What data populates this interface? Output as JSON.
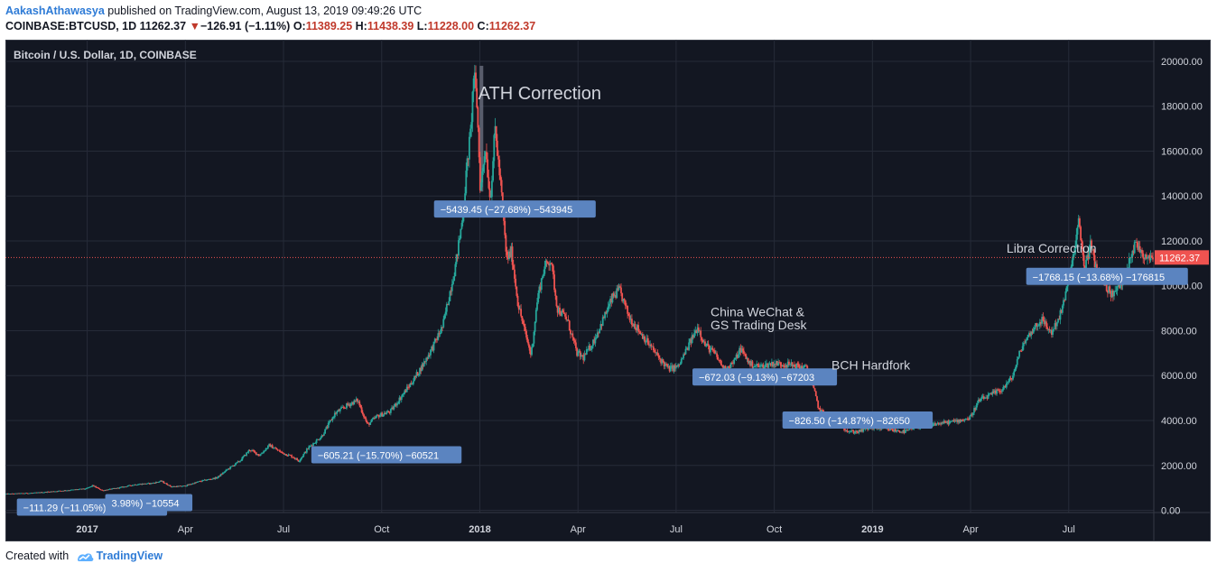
{
  "header": {
    "author": "AakashAthawasya",
    "published": " published on TradingView.com, August 13, 2019 09:49:26 UTC",
    "symbol": "COINBASE:BTCUSD, 1D",
    "last": "11262.37",
    "arrow": "▼",
    "change": "−126.91 (−1.11%)",
    "o_label": "O:",
    "o_value": "11389.25",
    "h_label": "H:",
    "h_value": "11438.39",
    "l_label": "L:",
    "l_value": "11228.00",
    "c_label": "C:",
    "c_value": "11262.37"
  },
  "footer": {
    "created": "Created with",
    "brand": "TradingView"
  },
  "chart_data": {
    "type": "line",
    "subtype": "candlestick",
    "title": "Bitcoin / U.S. Dollar, 1D, COINBASE",
    "ylim": [
      -100,
      20400
    ],
    "y_ticks": [
      "20000.00",
      "18000.00",
      "16000.00",
      "14000.00",
      "12000.00",
      "10000.00",
      "8000.00",
      "6000.00",
      "4000.00",
      "2000.00",
      "0.00"
    ],
    "y_tick_values": [
      20000,
      18000,
      16000,
      14000,
      12000,
      10000,
      8000,
      6000,
      4000,
      2000,
      0
    ],
    "x_ticks": [
      {
        "label": "2017",
        "year": true,
        "month": 0
      },
      {
        "label": "Apr",
        "year": false,
        "month": 3
      },
      {
        "label": "Jul",
        "year": false,
        "month": 6
      },
      {
        "label": "Oct",
        "year": false,
        "month": 9
      },
      {
        "label": "2018",
        "year": true,
        "month": 12
      },
      {
        "label": "Apr",
        "year": false,
        "month": 15
      },
      {
        "label": "Jul",
        "year": false,
        "month": 18
      },
      {
        "label": "Oct",
        "year": false,
        "month": 21
      },
      {
        "label": "2019",
        "year": true,
        "month": 24
      },
      {
        "label": "Apr",
        "year": false,
        "month": 27
      },
      {
        "label": "Jul",
        "year": false,
        "month": 30
      }
    ],
    "x_range_months": [
      -2.5,
      32.6
    ],
    "last_price": 11262.37,
    "last_price_label": "11262.37",
    "price_path": [
      [
        -2.5,
        720
      ],
      [
        -1.5,
        780
      ],
      [
        -0.5,
        900
      ],
      [
        0,
        960
      ],
      [
        0.2,
        1100
      ],
      [
        0.5,
        880
      ],
      [
        1,
        1000
      ],
      [
        1.5,
        1150
      ],
      [
        2,
        1200
      ],
      [
        2.3,
        1300
      ],
      [
        2.6,
        1050
      ],
      [
        3,
        1080
      ],
      [
        3.5,
        1300
      ],
      [
        4,
        1450
      ],
      [
        4.3,
        1800
      ],
      [
        4.7,
        2200
      ],
      [
        5.0,
        2700
      ],
      [
        5.3,
        2450
      ],
      [
        5.6,
        2900
      ],
      [
        6,
        2550
      ],
      [
        6.3,
        2400
      ],
      [
        6.5,
        2200
      ],
      [
        6.8,
        2800
      ],
      [
        7.2,
        3300
      ],
      [
        7.6,
        4300
      ],
      [
        8,
        4700
      ],
      [
        8.3,
        4900
      ],
      [
        8.6,
        3800
      ],
      [
        8.9,
        4200
      ],
      [
        9.3,
        4400
      ],
      [
        9.6,
        5000
      ],
      [
        10,
        5800
      ],
      [
        10.3,
        6500
      ],
      [
        10.6,
        7300
      ],
      [
        10.9,
        8200
      ],
      [
        11.1,
        9600
      ],
      [
        11.3,
        11000
      ],
      [
        11.5,
        13000
      ],
      [
        11.65,
        15500
      ],
      [
        11.75,
        16800
      ],
      [
        11.85,
        19500
      ],
      [
        11.95,
        18000
      ],
      [
        12.05,
        14200
      ],
      [
        12.2,
        16300
      ],
      [
        12.35,
        13800
      ],
      [
        12.5,
        17000
      ],
      [
        12.7,
        14000
      ],
      [
        12.85,
        11200
      ],
      [
        13.0,
        11500
      ],
      [
        13.2,
        9200
      ],
      [
        13.4,
        8000
      ],
      [
        13.6,
        6900
      ],
      [
        13.8,
        9500
      ],
      [
        14.0,
        10800
      ],
      [
        14.2,
        11200
      ],
      [
        14.4,
        9000
      ],
      [
        14.7,
        8500
      ],
      [
        15.0,
        7000
      ],
      [
        15.2,
        6800
      ],
      [
        15.5,
        7500
      ],
      [
        15.8,
        8500
      ],
      [
        16.1,
        9500
      ],
      [
        16.3,
        9800
      ],
      [
        16.6,
        8600
      ],
      [
        16.9,
        8000
      ],
      [
        17.2,
        7400
      ],
      [
        17.5,
        6800
      ],
      [
        17.8,
        6300
      ],
      [
        18.1,
        6400
      ],
      [
        18.4,
        7300
      ],
      [
        18.7,
        8200
      ],
      [
        18.9,
        7400
      ],
      [
        19.2,
        7000
      ],
      [
        19.5,
        6300
      ],
      [
        19.8,
        6600
      ],
      [
        20.0,
        7200
      ],
      [
        20.3,
        6500
      ],
      [
        20.6,
        6400
      ],
      [
        21.0,
        6550
      ],
      [
        21.4,
        6500
      ],
      [
        21.8,
        6400
      ],
      [
        22.0,
        6350
      ],
      [
        22.2,
        5600
      ],
      [
        22.4,
        4500
      ],
      [
        22.7,
        4100
      ],
      [
        23.0,
        3900
      ],
      [
        23.3,
        3500
      ],
      [
        23.6,
        3500
      ],
      [
        24.0,
        3700
      ],
      [
        24.5,
        3600
      ],
      [
        25.0,
        3500
      ],
      [
        25.5,
        3750
      ],
      [
        26.0,
        3850
      ],
      [
        26.5,
        3950
      ],
      [
        27.0,
        4100
      ],
      [
        27.3,
        4900
      ],
      [
        27.6,
        5100
      ],
      [
        28.0,
        5400
      ],
      [
        28.3,
        5900
      ],
      [
        28.6,
        7300
      ],
      [
        28.9,
        8000
      ],
      [
        29.2,
        8500
      ],
      [
        29.5,
        7900
      ],
      [
        29.8,
        8800
      ],
      [
        30.0,
        10000
      ],
      [
        30.2,
        11500
      ],
      [
        30.35,
        12900
      ],
      [
        30.5,
        10800
      ],
      [
        30.7,
        11800
      ],
      [
        30.9,
        10600
      ],
      [
        31.1,
        10300
      ],
      [
        31.3,
        9600
      ],
      [
        31.5,
        9800
      ],
      [
        31.7,
        10200
      ],
      [
        31.9,
        11300
      ],
      [
        32.1,
        11900
      ],
      [
        32.3,
        11400
      ],
      [
        32.6,
        11262
      ]
    ],
    "annotations": [
      {
        "text": "ATH Correction",
        "x": 11.95,
        "y": 18300,
        "size": "large"
      },
      {
        "text": "China WeChat &",
        "x": 19.05,
        "y": 8650,
        "size": "medium"
      },
      {
        "text": "GS Trading Desk",
        "x": 19.05,
        "y": 8050,
        "size": "medium"
      },
      {
        "text": "BCH Hardfork",
        "x": 22.75,
        "y": 6280,
        "size": "medium"
      },
      {
        "text": "Libra Correction",
        "x": 28.1,
        "y": 11480,
        "size": "medium"
      }
    ],
    "measure_labels": [
      {
        "text": "−5439.45 (−27.68%) −543945",
        "x": 10.6,
        "y": 13400
      },
      {
        "text": "−605.21 (−15.70%) −60521",
        "x": 6.85,
        "y": 2450
      },
      {
        "text": "−111.29 (−11.05%) −11129",
        "x": -2.15,
        "y": 120
      },
      {
        "text": "3.98%) −10554",
        "x": 0.55,
        "y": 320
      },
      {
        "text": "−672.03 (−9.13%) −67203",
        "x": 18.5,
        "y": 5920
      },
      {
        "text": "−826.50 (−14.87%) −82650",
        "x": 21.25,
        "y": 4000
      },
      {
        "text": "−1768.15 (−13.68%) −176815",
        "x": 28.7,
        "y": 10400
      }
    ],
    "ath_box_range": [
      14200,
      19800
    ],
    "ath_box_x": 12.05
  }
}
